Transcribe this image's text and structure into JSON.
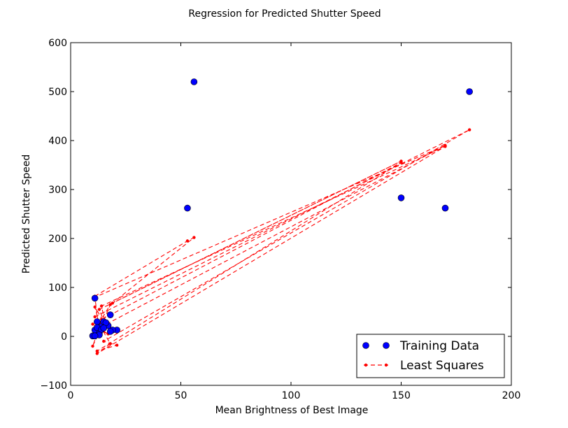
{
  "chart_data": {
    "type": "scatter",
    "title": "Regression for Predicted Shutter Speed",
    "xlabel": "Mean Brightness of Best Image",
    "ylabel": "Predicted Shutter Speed",
    "xlim": [
      0,
      200
    ],
    "ylim": [
      -100,
      600
    ],
    "xticks": [
      0,
      50,
      100,
      150,
      200
    ],
    "yticks": [
      -100,
      0,
      100,
      200,
      300,
      400,
      500,
      600
    ],
    "grid": false,
    "legend": {
      "placement": "lower-right",
      "entries": [
        "Training Data",
        "Least Squares"
      ]
    },
    "colors": {
      "training": "#0000ff",
      "least_squares": "#ff0000"
    },
    "series": [
      {
        "name": "Training Data",
        "style": "markers",
        "x": [
          56,
          181,
          53,
          150,
          170,
          11,
          18,
          12,
          21,
          19,
          14,
          11,
          16,
          10,
          15,
          13,
          12,
          17,
          14,
          18,
          13,
          11,
          16,
          15
        ],
        "y": [
          520,
          500,
          262,
          283,
          262,
          78,
          44,
          30,
          13,
          13,
          20,
          13,
          25,
          1,
          30,
          6,
          18,
          22,
          14,
          10,
          3,
          1,
          28,
          17
        ]
      },
      {
        "name": "Least Squares",
        "style": "dashed-dots",
        "x": [
          11,
          53,
          56,
          19,
          150,
          13,
          16,
          14,
          170,
          12,
          18,
          11,
          181,
          15,
          21,
          12,
          150,
          10,
          17,
          12,
          170,
          11,
          13,
          18,
          14,
          12,
          10,
          15,
          11,
          13
        ],
        "y": [
          82,
          195,
          202,
          68,
          358,
          55,
          20,
          62,
          388,
          -35,
          -15,
          40,
          422,
          -10,
          -18,
          -30,
          355,
          25,
          5,
          15,
          390,
          80,
          10,
          65,
          35,
          5,
          -20,
          30,
          60,
          25
        ]
      }
    ]
  }
}
